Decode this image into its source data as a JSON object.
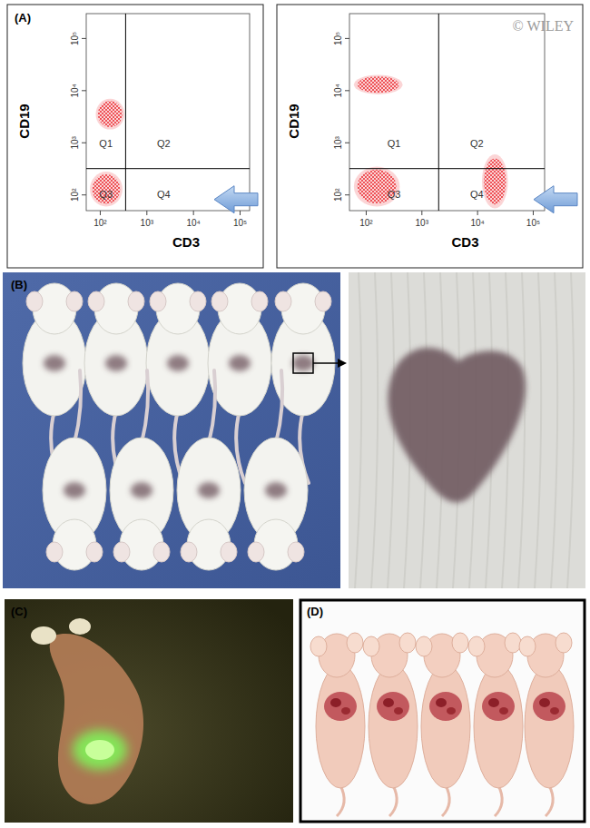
{
  "chart_data": [
    {
      "type": "scatter",
      "x_label": "CD3",
      "y_label": "CD19",
      "log": true,
      "color": "#e8141c",
      "xlim": [
        50,
        160000
      ],
      "ylim": [
        50,
        300000
      ],
      "xticks": [
        {
          "value": 100,
          "label": "10²"
        },
        {
          "value": 1000,
          "label": "10³"
        },
        {
          "value": 10000,
          "label": "10⁴"
        },
        {
          "value": 100000,
          "label": "10⁵"
        }
      ],
      "yticks": [
        {
          "value": 100,
          "label": "10²"
        },
        {
          "value": 1000,
          "label": "10³"
        },
        {
          "value": 10000,
          "label": "10⁴"
        },
        {
          "value": 100000,
          "label": "10⁵"
        }
      ],
      "quadrant_labels": [
        "Q1",
        "Q2",
        "Q3",
        "Q4"
      ],
      "gate_x": 350,
      "gate_y": 320,
      "populations": [
        {
          "x": [
            80,
            330
          ],
          "y": [
            1800,
            7000
          ]
        },
        {
          "x": [
            60,
            300
          ],
          "y": [
            60,
            280
          ]
        }
      ]
    },
    {
      "type": "scatter",
      "x_label": "CD3",
      "y_label": "CD19",
      "log": true,
      "color": "#e8141c",
      "xlim": [
        50,
        160000
      ],
      "ylim": [
        50,
        300000
      ],
      "xticks": [
        {
          "value": 100,
          "label": "10²"
        },
        {
          "value": 1000,
          "label": "10³"
        },
        {
          "value": 10000,
          "label": "10⁴"
        },
        {
          "value": 100000,
          "label": "10⁵"
        }
      ],
      "yticks": [
        {
          "value": 100,
          "label": "10²"
        },
        {
          "value": 1000,
          "label": "10³"
        },
        {
          "value": 10000,
          "label": "10⁴"
        },
        {
          "value": 100000,
          "label": "10⁵"
        }
      ],
      "quadrant_labels": [
        "Q1",
        "Q2",
        "Q3",
        "Q4"
      ],
      "gate_x": 2000,
      "gate_y": 320,
      "populations": [
        {
          "x": [
            60,
            450
          ],
          "y": [
            8500,
            20000
          ]
        },
        {
          "x": [
            12000,
            35000
          ],
          "y": [
            55,
            600
          ]
        },
        {
          "x": [
            60,
            400
          ],
          "y": [
            60,
            350
          ]
        }
      ]
    }
  ],
  "figure": {
    "panel_labels": [
      "(A)",
      "(B)",
      "(C)",
      "(D)"
    ],
    "watermark": "© WILEY"
  }
}
